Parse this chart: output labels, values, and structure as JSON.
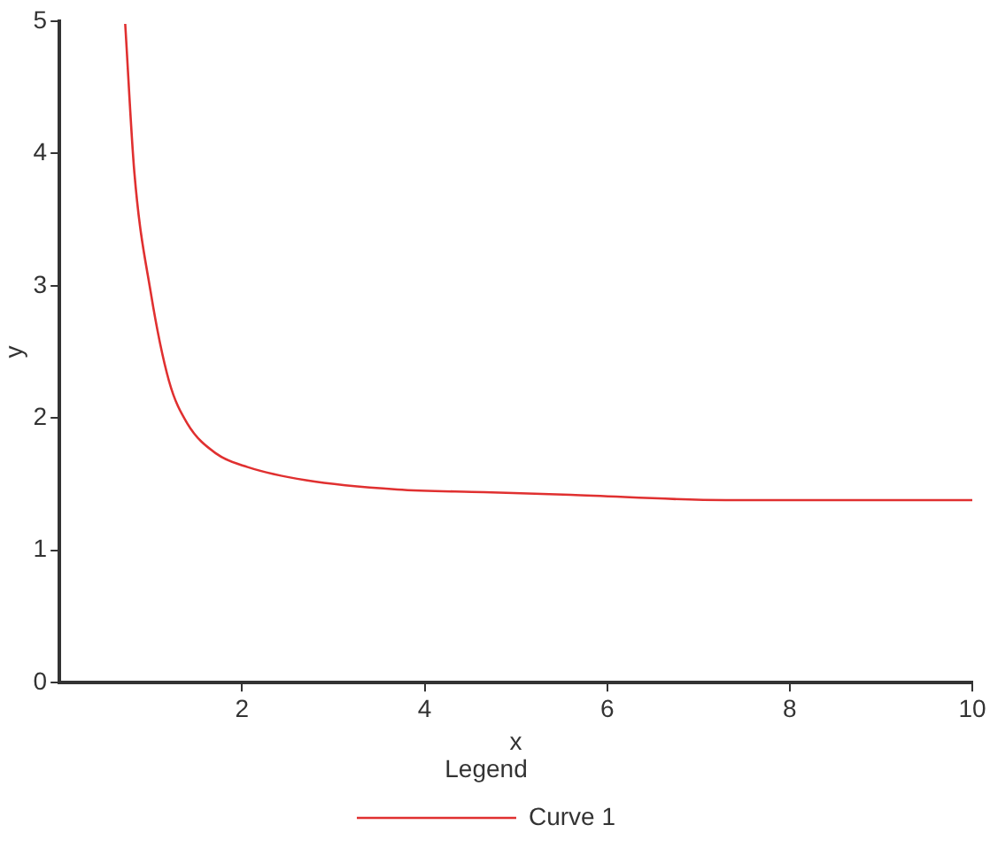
{
  "chart_data": {
    "type": "line",
    "xlabel": "x",
    "ylabel": "y",
    "legend_title": "Legend",
    "legend": "bottom",
    "grid": false,
    "marker": "none",
    "line_style": "solid",
    "xlim": [
      0,
      10
    ],
    "xticks": [
      2,
      4,
      6,
      8,
      10
    ],
    "ylim": [
      0,
      5
    ],
    "yticks": [
      0,
      1,
      2,
      3,
      4,
      5
    ],
    "series": [
      {
        "name": "Curve 1",
        "color": "#e03030",
        "x": [
          0.72,
          0.82,
          1.0,
          1.2,
          1.4,
          1.72,
          2.06,
          2.7,
          3.7,
          4.65,
          5.6,
          7.3,
          10
        ],
        "values": [
          4.98,
          3.86,
          2.95,
          2.28,
          1.96,
          1.73,
          1.63,
          1.53,
          1.46,
          1.44,
          1.42,
          1.38,
          1.38
        ]
      }
    ]
  }
}
